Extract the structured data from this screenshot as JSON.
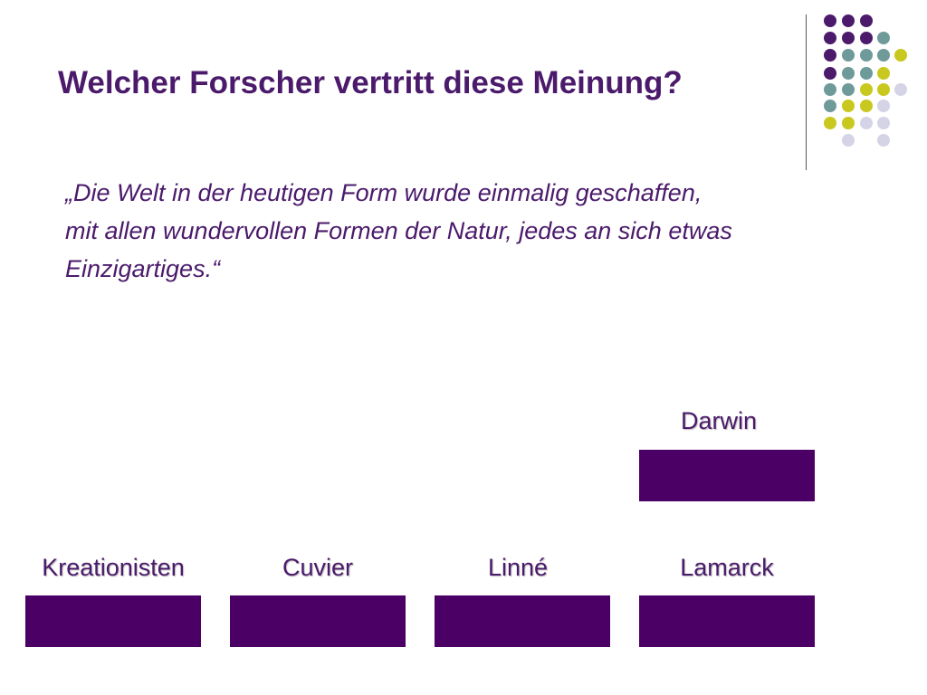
{
  "slide": {
    "title": "Welcher Forscher vertritt diese Meinung?",
    "quote": "„Die Welt in der heutigen Form wurde einmalig geschaffen, mit allen wundervollen Formen der Natur, jedes an sich etwas Einzigartiges.“"
  },
  "options": {
    "darwin": "Darwin",
    "kreationisten": "Kreationisten",
    "cuvier": "Cuvier",
    "linne": "Linné",
    "lamarck": "Lamarck"
  },
  "colors": {
    "purple": "#4b1a6b",
    "box": "#4b0066",
    "teal": "#6f9a9a",
    "olive": "#c8c81e",
    "lavender": "#d4d4e6"
  }
}
